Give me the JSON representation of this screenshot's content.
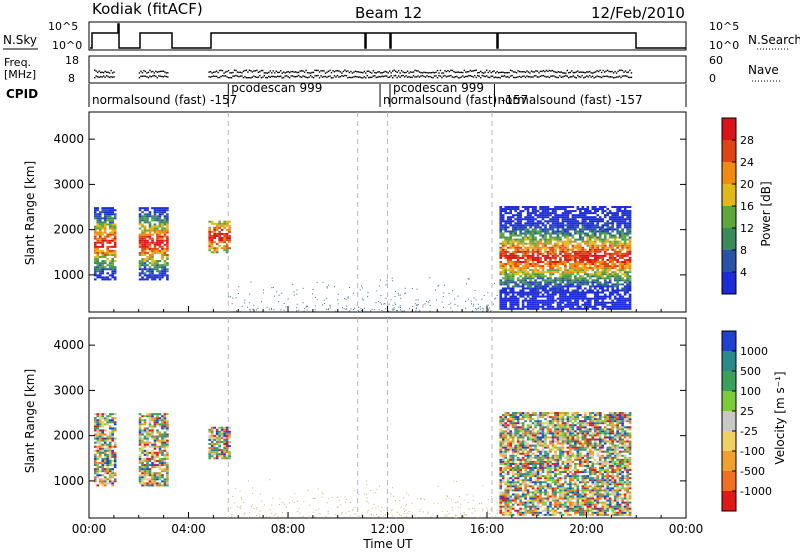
{
  "header": {
    "site_label": "Kodiak (fitACF)",
    "beam_label": "Beam 12",
    "date_label": "12/Feb/2010"
  },
  "top_panels": {
    "nsky": {
      "left_label": "N.Sky",
      "right_label": "N.Search",
      "tick_labels": [
        "10^5",
        "10^0"
      ],
      "right_tick_labels": [
        "10^5",
        "10^0"
      ]
    },
    "freq": {
      "left_label_line1": "Freq.",
      "left_label_line2": "[MHz]",
      "tick_labels": [
        "18",
        "8"
      ],
      "right_label": "Nave",
      "right_tick_labels": [
        "60",
        "0"
      ]
    },
    "cpid": {
      "label": "CPID",
      "segments": [
        {
          "label": "normalsound (fast) -157",
          "start_hr": 0.0,
          "end_hr": 5.6
        },
        {
          "label": "pcodescan 999",
          "start_hr": 5.6,
          "end_hr": 11.7
        },
        {
          "label": "normalsound (fast) -157",
          "start_hr": 11.7,
          "end_hr": 12.1
        },
        {
          "label": "pcodescan 999",
          "start_hr": 12.1,
          "end_hr": 16.3
        },
        {
          "label": "normalsound (fast) -157",
          "start_hr": 16.3,
          "end_hr": 24.0
        }
      ]
    }
  },
  "chart_data": [
    {
      "type": "heatmap",
      "title": "",
      "xlabel": "",
      "ylabel": "Slant Range [km]",
      "xlim": [
        0,
        24
      ],
      "ylim": [
        180,
        4600
      ],
      "yticks": [
        1000,
        2000,
        3000,
        4000
      ],
      "colorbar_label": "Power [dB]",
      "colorbar_ticks": [
        "4",
        "8",
        "12",
        "16",
        "20",
        "24",
        "28"
      ],
      "colorbar_colors": [
        "#1c2bd8",
        "#2a52a8",
        "#3a8a5a",
        "#5fa63b",
        "#e1b81a",
        "#f08a12",
        "#e04414",
        "#d8131a"
      ],
      "data_blocks": [
        {
          "start_hr": 0.2,
          "end_hr": 1.0,
          "range_min": 900,
          "range_max": 2500
        },
        {
          "start_hr": 2.0,
          "end_hr": 3.2,
          "range_min": 900,
          "range_max": 2500
        },
        {
          "start_hr": 4.8,
          "end_hr": 5.6,
          "range_min": 1500,
          "range_max": 2200
        },
        {
          "start_hr": 16.5,
          "end_hr": 21.8,
          "range_min": 250,
          "range_max": 2500
        }
      ]
    },
    {
      "type": "heatmap",
      "title": "",
      "xlabel": "Time UT",
      "ylabel": "Slant Range [km]",
      "xlim": [
        0,
        24
      ],
      "ylim": [
        180,
        4600
      ],
      "xticks": [
        "00:00",
        "04:00",
        "08:00",
        "12:00",
        "16:00",
        "20:00",
        "00:00"
      ],
      "yticks": [
        1000,
        2000,
        3000,
        4000
      ],
      "colorbar_label": "Velocity [m s⁻¹]",
      "colorbar_ticks": [
        "1000",
        "500",
        "100",
        "25",
        "-25",
        "-100",
        "-500",
        "-1000"
      ],
      "colorbar_colors": [
        "#2040d0",
        "#2a8a8a",
        "#3aa05a",
        "#7ccc3a",
        "#c8c8c8",
        "#f0d060",
        "#f0a030",
        "#f07020",
        "#e01818"
      ],
      "data_blocks": [
        {
          "start_hr": 0.2,
          "end_hr": 1.0,
          "range_min": 900,
          "range_max": 2500
        },
        {
          "start_hr": 2.0,
          "end_hr": 3.2,
          "range_min": 900,
          "range_max": 2500
        },
        {
          "start_hr": 4.8,
          "end_hr": 5.6,
          "range_min": 1500,
          "range_max": 2200
        },
        {
          "start_hr": 16.5,
          "end_hr": 21.8,
          "range_min": 250,
          "range_max": 2500
        }
      ]
    }
  ],
  "vertical_markers_hr": [
    5.6,
    10.8,
    12.0,
    16.2
  ]
}
